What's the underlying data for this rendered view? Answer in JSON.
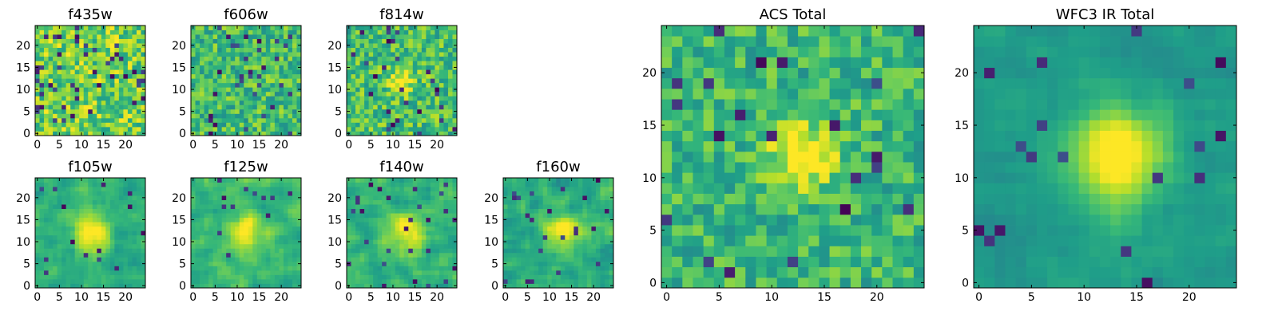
{
  "chart_data": [
    {
      "type": "heatmap",
      "title": "f435w",
      "colormap": "viridis",
      "grid": false,
      "xlim": [
        0,
        24
      ],
      "ylim": [
        0,
        24
      ],
      "xticks": [
        0,
        5,
        10,
        15,
        20
      ],
      "yticks": [
        0,
        5,
        10,
        15,
        20
      ],
      "x_tick_labels": [
        "0",
        "5",
        "10",
        "15",
        "20"
      ],
      "y_tick_labels": [
        "0",
        "5",
        "10",
        "15",
        "20"
      ],
      "values": "25x25 pixel cutout: noise-dominated, mostly yellow-green with scattered dark pixels, no visible central source"
    },
    {
      "type": "heatmap",
      "title": "f606w",
      "colormap": "viridis",
      "grid": false,
      "xlim": [
        0,
        24
      ],
      "ylim": [
        0,
        24
      ],
      "xticks": [
        0,
        5,
        10,
        15,
        20
      ],
      "yticks": [
        0,
        5,
        10,
        15,
        20
      ],
      "x_tick_labels": [
        "0",
        "5",
        "10",
        "15",
        "20"
      ],
      "y_tick_labels": [
        "0",
        "5",
        "10",
        "15",
        "20"
      ],
      "values": "25x25 pixel cutout: noise-dominated, green with scattered dark pixels, no clear central source"
    },
    {
      "type": "heatmap",
      "title": "f814w",
      "colormap": "viridis",
      "grid": false,
      "xlim": [
        0,
        24
      ],
      "ylim": [
        0,
        24
      ],
      "xticks": [
        0,
        5,
        10,
        15,
        20
      ],
      "yticks": [
        0,
        5,
        10,
        15,
        20
      ],
      "x_tick_labels": [
        "0",
        "5",
        "10",
        "15",
        "20"
      ],
      "y_tick_labels": [
        "0",
        "5",
        "10",
        "15",
        "20"
      ],
      "values": "25x25 pixel cutout: noisy, faint bright spot near pixel (12,12)"
    },
    {
      "type": "heatmap",
      "title": "f105w",
      "colormap": "viridis",
      "grid": false,
      "xlim": [
        0,
        24
      ],
      "ylim": [
        0,
        24
      ],
      "xticks": [
        0,
        5,
        10,
        15,
        20
      ],
      "yticks": [
        0,
        5,
        10,
        15,
        20
      ],
      "x_tick_labels": [
        "0",
        "5",
        "10",
        "15",
        "20"
      ],
      "y_tick_labels": [
        "0",
        "5",
        "10",
        "15",
        "20"
      ],
      "values": "25x25 pixel cutout: smooth background with bright yellow source centred near (12,12)"
    },
    {
      "type": "heatmap",
      "title": "f125w",
      "colormap": "viridis",
      "grid": false,
      "xlim": [
        0,
        24
      ],
      "ylim": [
        0,
        24
      ],
      "xticks": [
        0,
        5,
        10,
        15,
        20
      ],
      "yticks": [
        0,
        5,
        10,
        15,
        20
      ],
      "x_tick_labels": [
        "0",
        "5",
        "10",
        "15",
        "20"
      ],
      "y_tick_labels": [
        "0",
        "5",
        "10",
        "15",
        "20"
      ],
      "values": "25x25 pixel cutout: bright source near (12,12), mottled background"
    },
    {
      "type": "heatmap",
      "title": "f140w",
      "colormap": "viridis",
      "grid": false,
      "xlim": [
        0,
        24
      ],
      "ylim": [
        0,
        24
      ],
      "xticks": [
        0,
        5,
        10,
        15,
        20
      ],
      "yticks": [
        0,
        5,
        10,
        15,
        20
      ],
      "x_tick_labels": [
        "0",
        "5",
        "10",
        "15",
        "20"
      ],
      "y_tick_labels": [
        "0",
        "5",
        "10",
        "15",
        "20"
      ],
      "values": "25x25 pixel cutout: bright source near (13,12)"
    },
    {
      "type": "heatmap",
      "title": "f160w",
      "colormap": "viridis",
      "grid": false,
      "xlim": [
        0,
        24
      ],
      "ylim": [
        0,
        24
      ],
      "xticks": [
        0,
        5,
        10,
        15,
        20
      ],
      "yticks": [
        0,
        5,
        10,
        15,
        20
      ],
      "x_tick_labels": [
        "0",
        "5",
        "10",
        "15",
        "20"
      ],
      "y_tick_labels": [
        "0",
        "5",
        "10",
        "15",
        "20"
      ],
      "values": "25x25 pixel cutout: bright source near (13,12), darker pixels at edges"
    },
    {
      "type": "heatmap",
      "title": "ACS Total",
      "colormap": "viridis",
      "grid": false,
      "xlim": [
        0,
        24
      ],
      "ylim": [
        0,
        24
      ],
      "xticks": [
        0,
        5,
        10,
        15,
        20
      ],
      "yticks": [
        0,
        5,
        10,
        15,
        20
      ],
      "x_tick_labels": [
        "0",
        "5",
        "10",
        "15",
        "20"
      ],
      "y_tick_labels": [
        "0",
        "5",
        "10",
        "15",
        "20"
      ],
      "values": "25x25 pixel coadd of ACS bands: noisy, bright source near (13,12)"
    },
    {
      "type": "heatmap",
      "title": "WFC3 IR Total",
      "colormap": "viridis",
      "grid": false,
      "xlim": [
        0,
        24
      ],
      "ylim": [
        0,
        24
      ],
      "xticks": [
        0,
        5,
        10,
        15,
        20
      ],
      "yticks": [
        0,
        5,
        10,
        15,
        20
      ],
      "x_tick_labels": [
        "0",
        "5",
        "10",
        "15",
        "20"
      ],
      "y_tick_labels": [
        "0",
        "5",
        "10",
        "15",
        "20"
      ],
      "values": "25x25 pixel coadd of WFC3 IR bands: smooth, bright source near (13,12), dark patches at left and lower right"
    }
  ]
}
